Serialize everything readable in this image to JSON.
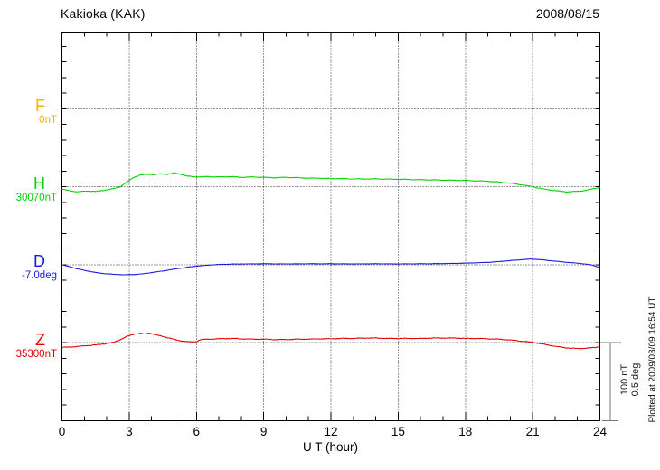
{
  "header": {
    "title": "Kakioka (KAK)",
    "date": "2008/08/15"
  },
  "xaxis": {
    "title": "U T (hour)",
    "tick_labels": [
      "0",
      "3",
      "6",
      "9",
      "12",
      "15",
      "18",
      "21",
      "24"
    ]
  },
  "scale_bar": {
    "line1": "100 nT",
    "line2": "0.5 deg"
  },
  "plotted_at": "Plotted at 2009/03/09 16:54 UT",
  "chart_data": {
    "type": "line",
    "title": "Kakioka (KAK)",
    "date": "2008/08/15",
    "xlabel": "U T (hour)",
    "x_range": [
      0,
      24
    ],
    "x_major_ticks": [
      0,
      3,
      6,
      9,
      12,
      15,
      18,
      21,
      24
    ],
    "x_minor_step_hours": 1,
    "grid": "dotted vertical lines every 3 h; dotted horizontal baseline per component",
    "scale": {
      "per_division_nT": 100,
      "per_division_deg": 0.5
    },
    "plotted_at": "Plotted at 2009/03/09 16:54 UT",
    "note": "points are [UT hour, offset from baseline value] in the series unit; F trace absent (baseline only)",
    "series": [
      {
        "name": "F",
        "baseline_label": "0nT",
        "baseline_value": 0,
        "unit": "nT",
        "color": "#FFB000",
        "points": []
      },
      {
        "name": "H",
        "baseline_label": "30070nT",
        "baseline_value": 30070,
        "unit": "nT",
        "color": "#00D400",
        "points": [
          [
            0,
            -3
          ],
          [
            0.3,
            -5
          ],
          [
            0.7,
            -6.5
          ],
          [
            1.1,
            -5.5
          ],
          [
            1.5,
            -6
          ],
          [
            1.9,
            -4.5
          ],
          [
            2.3,
            -2.5
          ],
          [
            2.6,
            0
          ],
          [
            2.9,
            6
          ],
          [
            3.2,
            12
          ],
          [
            3.5,
            15
          ],
          [
            3.8,
            16
          ],
          [
            4.1,
            15.5
          ],
          [
            4.4,
            16.5
          ],
          [
            4.7,
            16
          ],
          [
            5.0,
            17.5
          ],
          [
            5.3,
            16
          ],
          [
            5.6,
            13.5
          ],
          [
            6.0,
            12.5
          ],
          [
            6.5,
            13
          ],
          [
            7.0,
            12.5
          ],
          [
            7.5,
            13
          ],
          [
            8.0,
            12
          ],
          [
            8.5,
            12.5
          ],
          [
            9.0,
            12
          ],
          [
            9.5,
            11.5
          ],
          [
            10,
            12
          ],
          [
            10.5,
            11.5
          ],
          [
            11,
            11
          ],
          [
            11.5,
            11
          ],
          [
            12,
            10.5
          ],
          [
            13,
            10
          ],
          [
            14,
            10
          ],
          [
            15,
            9.5
          ],
          [
            16,
            9
          ],
          [
            17,
            8.5
          ],
          [
            18,
            8
          ],
          [
            18.5,
            7.5
          ],
          [
            19,
            7
          ],
          [
            19.5,
            6
          ],
          [
            20,
            4.5
          ],
          [
            20.5,
            2.5
          ],
          [
            21,
            0
          ],
          [
            21.5,
            -3
          ],
          [
            22,
            -5
          ],
          [
            22.5,
            -6.5
          ],
          [
            23,
            -6
          ],
          [
            23.4,
            -4.5
          ],
          [
            23.7,
            -2.5
          ],
          [
            24,
            -1
          ]
        ]
      },
      {
        "name": "D",
        "baseline_label": "-7.0deg",
        "baseline_value": -7.0,
        "unit": "deg",
        "color": "#1A1AD9",
        "points": [
          [
            0,
            0
          ],
          [
            0.4,
            -0.015
          ],
          [
            0.8,
            -0.03
          ],
          [
            1.2,
            -0.042
          ],
          [
            1.6,
            -0.052
          ],
          [
            2,
            -0.058
          ],
          [
            2.4,
            -0.062
          ],
          [
            2.8,
            -0.064
          ],
          [
            3.2,
            -0.063
          ],
          [
            3.6,
            -0.058
          ],
          [
            4,
            -0.05
          ],
          [
            4.4,
            -0.042
          ],
          [
            4.8,
            -0.033
          ],
          [
            5.2,
            -0.024
          ],
          [
            5.6,
            -0.016
          ],
          [
            6,
            -0.009
          ],
          [
            6.5,
            -0.003
          ],
          [
            7,
            0.002
          ],
          [
            8,
            0.005
          ],
          [
            9,
            0.006
          ],
          [
            10,
            0.005
          ],
          [
            11,
            0.006
          ],
          [
            12,
            0.006
          ],
          [
            13,
            0.005
          ],
          [
            14,
            0.006
          ],
          [
            15,
            0.005
          ],
          [
            16,
            0.006
          ],
          [
            17,
            0.007
          ],
          [
            18,
            0.01
          ],
          [
            19,
            0.015
          ],
          [
            19.5,
            0.02
          ],
          [
            20,
            0.026
          ],
          [
            20.5,
            0.032
          ],
          [
            20.9,
            0.036
          ],
          [
            21.3,
            0.033
          ],
          [
            21.7,
            0.027
          ],
          [
            22.2,
            0.02
          ],
          [
            22.7,
            0.013
          ],
          [
            23.2,
            0.007
          ],
          [
            23.6,
            0
          ],
          [
            24,
            -0.018
          ]
        ]
      },
      {
        "name": "Z",
        "baseline_label": "35300nT",
        "baseline_value": 35300,
        "unit": "nT",
        "color": "#E60000",
        "points": [
          [
            0,
            -6
          ],
          [
            0.4,
            -5.5
          ],
          [
            0.8,
            -4.5
          ],
          [
            1.2,
            -3.5
          ],
          [
            1.6,
            -2.5
          ],
          [
            2,
            -1
          ],
          [
            2.3,
            0.5
          ],
          [
            2.6,
            4
          ],
          [
            2.9,
            8
          ],
          [
            3.2,
            11
          ],
          [
            3.5,
            12
          ],
          [
            3.7,
            11
          ],
          [
            3.9,
            12.5
          ],
          [
            4.2,
            10
          ],
          [
            4.5,
            8
          ],
          [
            4.8,
            6
          ],
          [
            5.1,
            3.5
          ],
          [
            5.4,
            2
          ],
          [
            5.7,
            1
          ],
          [
            6,
            1.5
          ],
          [
            6.2,
            4
          ],
          [
            6.5,
            4.5
          ],
          [
            7,
            5
          ],
          [
            7.5,
            5.5
          ],
          [
            8,
            5
          ],
          [
            8.5,
            4.5
          ],
          [
            9,
            4.5
          ],
          [
            9.5,
            4
          ],
          [
            10,
            4
          ],
          [
            10.5,
            4.5
          ],
          [
            11,
            4.5
          ],
          [
            11.5,
            5
          ],
          [
            12,
            5
          ],
          [
            12.5,
            5.5
          ],
          [
            13,
            5.5
          ],
          [
            13.5,
            6
          ],
          [
            14,
            6
          ],
          [
            14.5,
            5.5
          ],
          [
            15,
            5.5
          ],
          [
            16,
            5.5
          ],
          [
            16.5,
            6
          ],
          [
            17,
            6
          ],
          [
            17.5,
            6
          ],
          [
            18,
            5.5
          ],
          [
            18.5,
            5.5
          ],
          [
            19,
            5
          ],
          [
            19.5,
            4.5
          ],
          [
            20,
            3.5
          ],
          [
            20.5,
            2
          ],
          [
            21,
            0.5
          ],
          [
            21.3,
            -1
          ],
          [
            21.7,
            -3
          ],
          [
            22.1,
            -5
          ],
          [
            22.5,
            -6.5
          ],
          [
            23,
            -7.5
          ],
          [
            23.4,
            -7
          ],
          [
            23.8,
            -6
          ],
          [
            24,
            -5
          ]
        ]
      }
    ]
  }
}
